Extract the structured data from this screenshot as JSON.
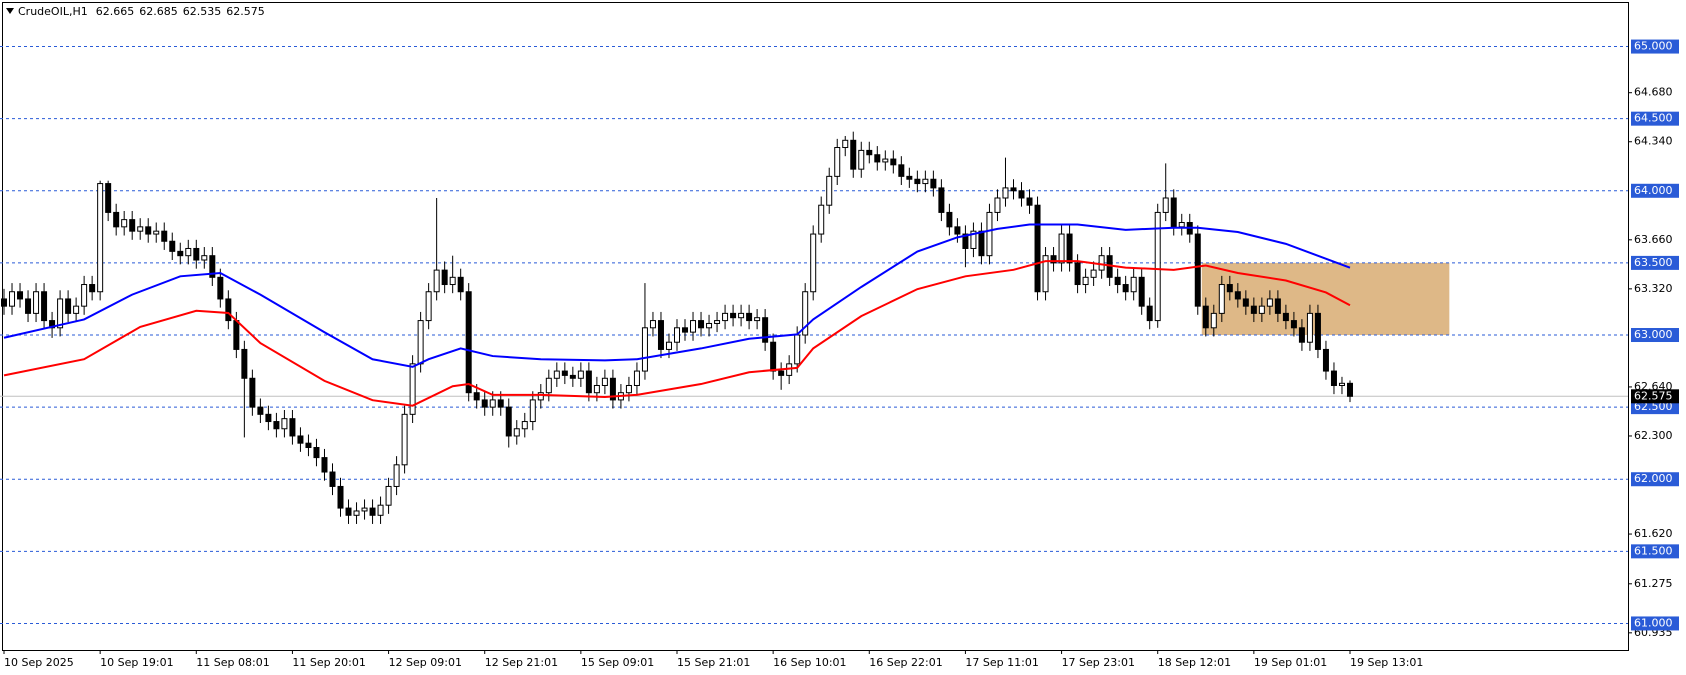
{
  "chart_data": {
    "type": "candlestick",
    "symbol": "CrudeOIL,H1",
    "xlim": [
      -0.5,
      202.7
    ],
    "ylim": [
      60.816,
      65.302
    ],
    "up_color": "#ffffff",
    "down_color": "#000000",
    "level_color": "#2a5bd7",
    "xticks": [
      {
        "value": 0,
        "label": "10 Sep 2025"
      },
      {
        "value": 12,
        "label": "10 Sep 19:01"
      },
      {
        "value": 24,
        "label": "11 Sep 08:01"
      },
      {
        "value": 36,
        "label": "11 Sep 20:01"
      },
      {
        "value": 48,
        "label": "12 Sep 09:01"
      },
      {
        "value": 60,
        "label": "12 Sep 21:01"
      },
      {
        "value": 72,
        "label": "15 Sep 09:01"
      },
      {
        "value": 84,
        "label": "15 Sep 21:01"
      },
      {
        "value": 96,
        "label": "16 Sep 10:01"
      },
      {
        "value": 108,
        "label": "16 Sep 22:01"
      },
      {
        "value": 120,
        "label": "17 Sep 11:01"
      },
      {
        "value": 132,
        "label": "17 Sep 23:01"
      },
      {
        "value": 144,
        "label": "18 Sep 12:01"
      },
      {
        "value": 156,
        "label": "19 Sep 01:01"
      },
      {
        "value": 168,
        "label": "19 Sep 13:01"
      }
    ],
    "yticks": [
      {
        "value": 64.68,
        "label": "64.680"
      },
      {
        "value": 64.34,
        "label": "64.340"
      },
      {
        "value": 63.66,
        "label": "63.660"
      },
      {
        "value": 63.32,
        "label": "63.320"
      },
      {
        "value": 62.64,
        "label": "62.640"
      },
      {
        "value": 62.3,
        "label": "62.300"
      },
      {
        "value": 61.62,
        "label": "61.620"
      },
      61.275,
      60.935
    ],
    "levels": [
      {
        "value": 65,
        "label": "65.000"
      },
      {
        "value": 64.5,
        "label": "64.500"
      },
      {
        "value": 64,
        "label": "64.000"
      },
      {
        "value": 63.5,
        "label": "63.500"
      },
      {
        "value": 63,
        "label": "63.000"
      },
      {
        "value": 62.5,
        "label": "62.500"
      },
      {
        "value": 62,
        "label": "62.000"
      },
      {
        "value": 61.5,
        "label": "61.500"
      },
      {
        "value": 61,
        "label": "61.000"
      }
    ],
    "zone": {
      "x": [
        149.5,
        180.4
      ],
      "y": [
        63.0,
        63.5
      ],
      "color": "#deb887"
    },
    "series": [
      {
        "color": "#0000ff",
        "x": [
          0,
          10,
          16,
          22,
          27,
          32,
          40,
          46,
          51,
          53,
          57,
          61,
          67,
          75,
          79,
          87,
          93,
          99,
          101,
          107,
          114,
          119,
          124,
          128,
          134,
          140,
          146,
          149,
          154,
          160,
          168
        ],
        "values": [
          62.981,
          63.108,
          63.28,
          63.407,
          63.43,
          63.28,
          63.019,
          62.832,
          62.779,
          62.832,
          62.907,
          62.854,
          62.832,
          62.824,
          62.832,
          62.907,
          62.974,
          63.004,
          63.108,
          63.333,
          63.579,
          63.677,
          63.736,
          63.766,
          63.766,
          63.729,
          63.744,
          63.744,
          63.714,
          63.632,
          63.467
        ]
      },
      {
        "color": "#ff0000",
        "x": [
          0,
          10,
          17,
          24,
          28,
          32,
          40,
          46,
          51,
          56,
          58,
          61,
          67,
          75,
          79,
          87,
          93,
          99,
          101,
          107,
          114,
          120,
          126,
          130,
          134,
          140,
          146,
          150,
          154,
          160,
          165,
          168
        ],
        "values": [
          62.72,
          62.832,
          63.056,
          63.168,
          63.153,
          62.944,
          62.682,
          62.548,
          62.51,
          62.645,
          62.66,
          62.585,
          62.585,
          62.57,
          62.585,
          62.66,
          62.742,
          62.772,
          62.907,
          63.131,
          63.318,
          63.407,
          63.452,
          63.512,
          63.512,
          63.467,
          63.452,
          63.482,
          63.43,
          63.378,
          63.295,
          63.206
        ]
      }
    ],
    "candles": [
      [
        63.25,
        63.32,
        63.14,
        63.2
      ],
      [
        63.2,
        63.36,
        63.14,
        63.3
      ],
      [
        63.3,
        63.36,
        63.19,
        63.25
      ],
      [
        63.25,
        63.31,
        63.09,
        63.15
      ],
      [
        63.15,
        63.36,
        63.09,
        63.3
      ],
      [
        63.3,
        63.36,
        63.04,
        63.1
      ],
      [
        63.1,
        63.16,
        62.98,
        63.05
      ],
      [
        63.05,
        63.31,
        62.99,
        63.25
      ],
      [
        63.25,
        63.31,
        63.09,
        63.15
      ],
      [
        63.15,
        63.26,
        63.09,
        63.2
      ],
      [
        63.2,
        63.41,
        63.14,
        63.35
      ],
      [
        63.35,
        63.41,
        63.24,
        63.3
      ],
      [
        63.3,
        64.07,
        63.24,
        64.05
      ],
      [
        64.05,
        64.07,
        63.79,
        63.85
      ],
      [
        63.85,
        63.91,
        63.69,
        63.75
      ],
      [
        63.75,
        63.86,
        63.69,
        63.8
      ],
      [
        63.8,
        63.86,
        63.66,
        63.72
      ],
      [
        63.72,
        63.81,
        63.66,
        63.75
      ],
      [
        63.75,
        63.81,
        63.64,
        63.7
      ],
      [
        63.7,
        63.78,
        63.64,
        63.72
      ],
      [
        63.72,
        63.78,
        63.59,
        63.65
      ],
      [
        63.65,
        63.71,
        63.52,
        63.58
      ],
      [
        63.58,
        63.64,
        63.49,
        63.55
      ],
      [
        63.55,
        63.66,
        63.49,
        63.6
      ],
      [
        63.6,
        63.66,
        63.46,
        63.52
      ],
      [
        63.52,
        63.61,
        63.46,
        63.55
      ],
      [
        63.55,
        63.61,
        63.34,
        63.4
      ],
      [
        63.4,
        63.46,
        63.19,
        63.25
      ],
      [
        63.25,
        63.31,
        63.04,
        63.1
      ],
      [
        63.1,
        63.16,
        62.84,
        62.9
      ],
      [
        62.9,
        62.96,
        62.29,
        62.7
      ],
      [
        62.7,
        62.76,
        62.44,
        62.5
      ],
      [
        62.5,
        62.56,
        62.39,
        62.45
      ],
      [
        62.45,
        62.51,
        62.34,
        62.4
      ],
      [
        62.4,
        62.46,
        62.29,
        62.35
      ],
      [
        62.35,
        62.48,
        62.29,
        62.42
      ],
      [
        62.42,
        62.48,
        62.24,
        62.3
      ],
      [
        62.3,
        62.36,
        62.19,
        62.25
      ],
      [
        62.25,
        62.31,
        62.16,
        62.22
      ],
      [
        62.22,
        62.28,
        62.09,
        62.15
      ],
      [
        62.15,
        62.21,
        61.99,
        62.05
      ],
      [
        62.05,
        62.11,
        61.89,
        61.95
      ],
      [
        61.95,
        62.01,
        61.74,
        61.8
      ],
      [
        61.8,
        61.86,
        61.69,
        61.75
      ],
      [
        61.75,
        61.84,
        61.69,
        61.78
      ],
      [
        61.78,
        61.86,
        61.72,
        61.8
      ],
      [
        61.8,
        61.86,
        61.69,
        61.75
      ],
      [
        61.75,
        61.88,
        61.69,
        61.82
      ],
      [
        61.82,
        62.01,
        61.76,
        61.95
      ],
      [
        61.95,
        62.16,
        61.89,
        62.1
      ],
      [
        62.1,
        62.51,
        62.04,
        62.45
      ],
      [
        62.45,
        62.86,
        62.39,
        62.8
      ],
      [
        62.8,
        63.16,
        62.74,
        63.1
      ],
      [
        63.1,
        63.36,
        63.04,
        63.3
      ],
      [
        63.3,
        63.95,
        63.24,
        63.45
      ],
      [
        63.45,
        63.51,
        63.29,
        63.35
      ],
      [
        63.35,
        63.55,
        63.29,
        63.4
      ],
      [
        63.4,
        63.46,
        63.24,
        63.3
      ],
      [
        63.3,
        63.36,
        62.54,
        62.6
      ],
      [
        62.6,
        62.66,
        62.49,
        62.55
      ],
      [
        62.55,
        62.61,
        62.44,
        62.5
      ],
      [
        62.5,
        62.61,
        62.44,
        62.55
      ],
      [
        62.55,
        62.61,
        62.44,
        62.5
      ],
      [
        62.5,
        62.56,
        62.22,
        62.3
      ],
      [
        62.3,
        62.41,
        62.24,
        62.35
      ],
      [
        62.35,
        62.46,
        62.29,
        62.4
      ],
      [
        62.4,
        62.61,
        62.34,
        62.55
      ],
      [
        62.55,
        62.66,
        62.49,
        62.6
      ],
      [
        62.6,
        62.76,
        62.54,
        62.7
      ],
      [
        62.7,
        62.81,
        62.64,
        62.75
      ],
      [
        62.75,
        62.81,
        62.66,
        62.72
      ],
      [
        62.72,
        62.78,
        62.64,
        62.7
      ],
      [
        62.7,
        62.81,
        62.64,
        62.75
      ],
      [
        62.75,
        62.81,
        62.54,
        62.6
      ],
      [
        62.6,
        62.71,
        62.54,
        62.65
      ],
      [
        62.65,
        62.76,
        62.59,
        62.7
      ],
      [
        62.7,
        62.76,
        62.49,
        62.55
      ],
      [
        62.55,
        62.66,
        62.49,
        62.6
      ],
      [
        62.6,
        62.71,
        62.54,
        62.65
      ],
      [
        62.65,
        62.81,
        62.59,
        62.75
      ],
      [
        62.75,
        63.36,
        62.69,
        63.05
      ],
      [
        63.05,
        63.16,
        62.99,
        63.1
      ],
      [
        63.1,
        63.16,
        62.84,
        62.9
      ],
      [
        62.9,
        63.01,
        62.84,
        62.95
      ],
      [
        62.95,
        63.11,
        62.89,
        63.05
      ],
      [
        63.05,
        63.11,
        62.96,
        63.02
      ],
      [
        63.02,
        63.16,
        62.96,
        63.1
      ],
      [
        63.1,
        63.16,
        62.99,
        63.05
      ],
      [
        63.05,
        63.14,
        62.99,
        63.08
      ],
      [
        63.08,
        63.16,
        63.02,
        63.1
      ],
      [
        63.1,
        63.21,
        63.04,
        63.15
      ],
      [
        63.15,
        63.21,
        63.06,
        63.12
      ],
      [
        63.12,
        63.21,
        63.06,
        63.15
      ],
      [
        63.15,
        63.21,
        63.04,
        63.1
      ],
      [
        63.1,
        63.18,
        63.04,
        63.12
      ],
      [
        63.12,
        63.18,
        62.89,
        62.95
      ],
      [
        62.95,
        63.01,
        62.69,
        62.75
      ],
      [
        62.75,
        62.81,
        62.62,
        62.72
      ],
      [
        62.72,
        62.86,
        62.66,
        62.8
      ],
      [
        62.8,
        63.06,
        62.74,
        63.0
      ],
      [
        63.0,
        63.36,
        62.94,
        63.3
      ],
      [
        63.3,
        63.76,
        63.24,
        63.7
      ],
      [
        63.7,
        63.96,
        63.64,
        63.9
      ],
      [
        63.9,
        64.16,
        63.84,
        64.1
      ],
      [
        64.1,
        64.36,
        64.04,
        64.3
      ],
      [
        64.3,
        64.38,
        64.24,
        64.35
      ],
      [
        64.35,
        64.41,
        64.09,
        64.15
      ],
      [
        64.15,
        64.34,
        64.09,
        64.28
      ],
      [
        64.28,
        64.34,
        64.19,
        64.25
      ],
      [
        64.25,
        64.31,
        64.14,
        64.2
      ],
      [
        64.2,
        64.28,
        64.14,
        64.22
      ],
      [
        64.22,
        64.28,
        64.12,
        64.18
      ],
      [
        64.18,
        64.24,
        64.04,
        64.1
      ],
      [
        64.1,
        64.16,
        64.02,
        64.08
      ],
      [
        64.08,
        64.14,
        63.99,
        64.05
      ],
      [
        64.05,
        64.14,
        63.99,
        64.08
      ],
      [
        64.08,
        64.14,
        63.96,
        64.02
      ],
      [
        64.02,
        64.08,
        63.79,
        63.85
      ],
      [
        63.85,
        63.91,
        63.69,
        63.75
      ],
      [
        63.75,
        63.81,
        63.64,
        63.7
      ],
      [
        63.7,
        63.76,
        63.47,
        63.6
      ],
      [
        63.6,
        63.78,
        63.54,
        63.72
      ],
      [
        63.72,
        63.78,
        63.49,
        63.55
      ],
      [
        63.55,
        63.91,
        63.49,
        63.85
      ],
      [
        63.85,
        64.01,
        63.79,
        63.95
      ],
      [
        63.95,
        64.23,
        63.89,
        64.02
      ],
      [
        64.02,
        64.08,
        63.94,
        64.0
      ],
      [
        64.0,
        64.06,
        63.89,
        63.95
      ],
      [
        63.95,
        64.01,
        63.84,
        63.9
      ],
      [
        63.9,
        63.96,
        63.24,
        63.3
      ],
      [
        63.3,
        63.61,
        63.24,
        63.55
      ],
      [
        63.55,
        63.61,
        63.44,
        63.5
      ],
      [
        63.5,
        63.76,
        63.44,
        63.7
      ],
      [
        63.7,
        63.76,
        63.44,
        63.5
      ],
      [
        63.5,
        63.56,
        63.29,
        63.35
      ],
      [
        63.35,
        63.46,
        63.29,
        63.4
      ],
      [
        63.4,
        63.51,
        63.34,
        63.45
      ],
      [
        63.45,
        63.61,
        63.39,
        63.55
      ],
      [
        63.55,
        63.61,
        63.34,
        63.4
      ],
      [
        63.4,
        63.46,
        63.29,
        63.35
      ],
      [
        63.35,
        63.41,
        63.24,
        63.3
      ],
      [
        63.3,
        63.46,
        63.24,
        63.4
      ],
      [
        63.4,
        63.46,
        63.14,
        63.2
      ],
      [
        63.2,
        63.26,
        63.04,
        63.1
      ],
      [
        63.1,
        63.91,
        63.05,
        63.85
      ],
      [
        63.85,
        64.19,
        63.79,
        63.95
      ],
      [
        63.95,
        64.01,
        63.69,
        63.75
      ],
      [
        63.75,
        63.84,
        63.69,
        63.78
      ],
      [
        63.78,
        63.84,
        63.64,
        63.7
      ],
      [
        63.7,
        63.76,
        63.14,
        63.2
      ],
      [
        63.2,
        63.26,
        62.99,
        63.05
      ],
      [
        63.05,
        63.21,
        62.99,
        63.15
      ],
      [
        63.15,
        63.41,
        63.09,
        63.35
      ],
      [
        63.35,
        63.41,
        63.24,
        63.3
      ],
      [
        63.3,
        63.36,
        63.19,
        63.25
      ],
      [
        63.25,
        63.31,
        63.14,
        63.2
      ],
      [
        63.2,
        63.26,
        63.09,
        63.15
      ],
      [
        63.15,
        63.26,
        63.09,
        63.2
      ],
      [
        63.2,
        63.31,
        63.14,
        63.25
      ],
      [
        63.25,
        63.31,
        63.09,
        63.15
      ],
      [
        63.15,
        63.21,
        63.04,
        63.1
      ],
      [
        63.1,
        63.16,
        62.99,
        63.05
      ],
      [
        63.05,
        63.11,
        62.89,
        62.95
      ],
      [
        62.95,
        63.21,
        62.89,
        63.15
      ],
      [
        63.15,
        63.21,
        62.84,
        62.9
      ],
      [
        62.9,
        62.96,
        62.69,
        62.75
      ],
      [
        62.75,
        62.81,
        62.59,
        62.65
      ],
      [
        62.65,
        62.71,
        62.59,
        62.665
      ],
      [
        62.665,
        62.685,
        62.535,
        62.575
      ]
    ]
  }
}
